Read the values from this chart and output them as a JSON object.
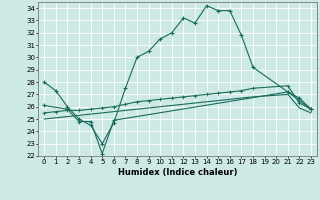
{
  "title": "",
  "xlabel": "Humidex (Indice chaleur)",
  "bg_color": "#cce9e5",
  "line_color": "#1a6b5a",
  "grid_color": "#ffffff",
  "xlim": [
    -0.5,
    23.5
  ],
  "ylim": [
    22,
    34.5
  ],
  "xticks": [
    0,
    1,
    2,
    3,
    4,
    5,
    6,
    7,
    8,
    9,
    10,
    11,
    12,
    13,
    14,
    15,
    16,
    17,
    18,
    19,
    20,
    21,
    22,
    23
  ],
  "yticks": [
    22,
    23,
    24,
    25,
    26,
    27,
    28,
    29,
    30,
    31,
    32,
    33,
    34
  ],
  "line1_x": [
    0,
    1,
    2,
    3,
    4,
    5,
    6,
    7,
    8,
    9,
    10,
    11,
    12,
    13,
    14,
    15,
    16,
    17,
    18,
    21,
    22,
    23
  ],
  "line1_y": [
    28,
    27.3,
    26.0,
    25.0,
    24.5,
    23.0,
    24.7,
    27.5,
    30.0,
    30.5,
    31.5,
    32.0,
    33.2,
    32.8,
    34.2,
    33.8,
    33.8,
    31.8,
    29.2,
    27.2,
    26.7,
    25.8
  ],
  "line2_x": [
    0,
    2,
    3,
    4,
    5,
    6,
    21,
    22,
    23
  ],
  "line2_y": [
    26.1,
    25.8,
    24.8,
    24.8,
    22.2,
    24.9,
    27.2,
    26.5,
    25.8
  ],
  "line3_x": [
    0,
    1,
    2,
    3,
    4,
    5,
    6,
    7,
    8,
    9,
    10,
    11,
    12,
    13,
    14,
    15,
    16,
    17,
    18,
    21,
    22,
    23
  ],
  "line3_y": [
    25.5,
    25.6,
    25.7,
    25.7,
    25.8,
    25.9,
    26.0,
    26.2,
    26.4,
    26.5,
    26.6,
    26.7,
    26.8,
    26.9,
    27.0,
    27.1,
    27.2,
    27.3,
    27.5,
    27.7,
    26.3,
    25.8
  ],
  "line4_x": [
    0,
    1,
    2,
    3,
    4,
    5,
    6,
    7,
    8,
    9,
    10,
    11,
    12,
    13,
    14,
    15,
    16,
    17,
    18,
    21,
    22,
    23
  ],
  "line4_y": [
    25.0,
    25.1,
    25.2,
    25.3,
    25.4,
    25.5,
    25.6,
    25.7,
    25.8,
    25.9,
    26.0,
    26.1,
    26.2,
    26.3,
    26.4,
    26.5,
    26.6,
    26.7,
    26.8,
    27.0,
    25.9,
    25.5
  ]
}
